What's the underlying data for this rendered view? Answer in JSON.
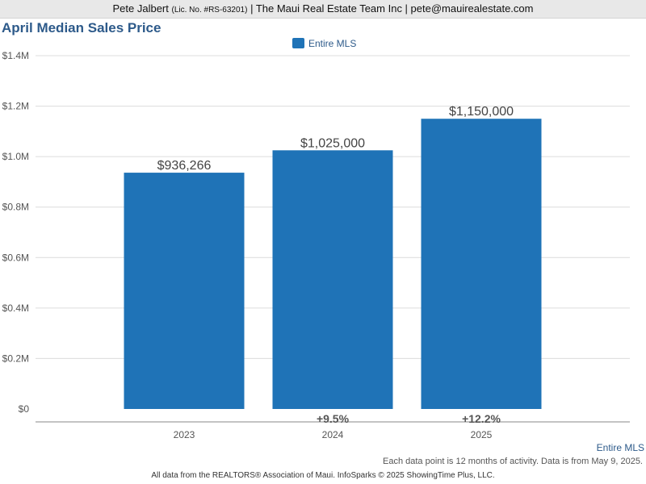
{
  "header": {
    "agent_name": "Pete Jalbert",
    "license": "(Lic. No. #RS-63201)",
    "rest": "| The Maui Real Estate Team Inc | pete@mauirealestate.com"
  },
  "chart_data": {
    "type": "bar",
    "title": "April Median Sales Price",
    "categories": [
      "2023",
      "2024",
      "2025"
    ],
    "series": [
      {
        "name": "Entire MLS",
        "values": [
          936266,
          1025000,
          1150000
        ],
        "value_labels": [
          "$936,266",
          "$1,025,000",
          "$1,150,000"
        ]
      }
    ],
    "change_labels": [
      "",
      "+9.5%",
      "+12.2%"
    ],
    "ylim": [
      0,
      1400000
    ],
    "yticks": [
      0,
      200000,
      400000,
      600000,
      800000,
      1000000,
      1200000,
      1400000
    ],
    "ytick_labels": [
      "$0",
      "$0.2M",
      "$0.4M",
      "$0.6M",
      "$0.8M",
      "$1.0M",
      "$1.2M",
      "$1.4M"
    ],
    "xlabel": "",
    "ylabel": "",
    "grid": true,
    "legend_position": "top-center",
    "bar_color": "#1f73b7"
  },
  "footer": {
    "series_label": "Entire MLS",
    "note": "Each data point is 12 months of activity. Data is from May 9, 2025.",
    "credit": "All data from the REALTORS® Association of Maui. InfoSparks © 2025 ShowingTime Plus, LLC."
  }
}
